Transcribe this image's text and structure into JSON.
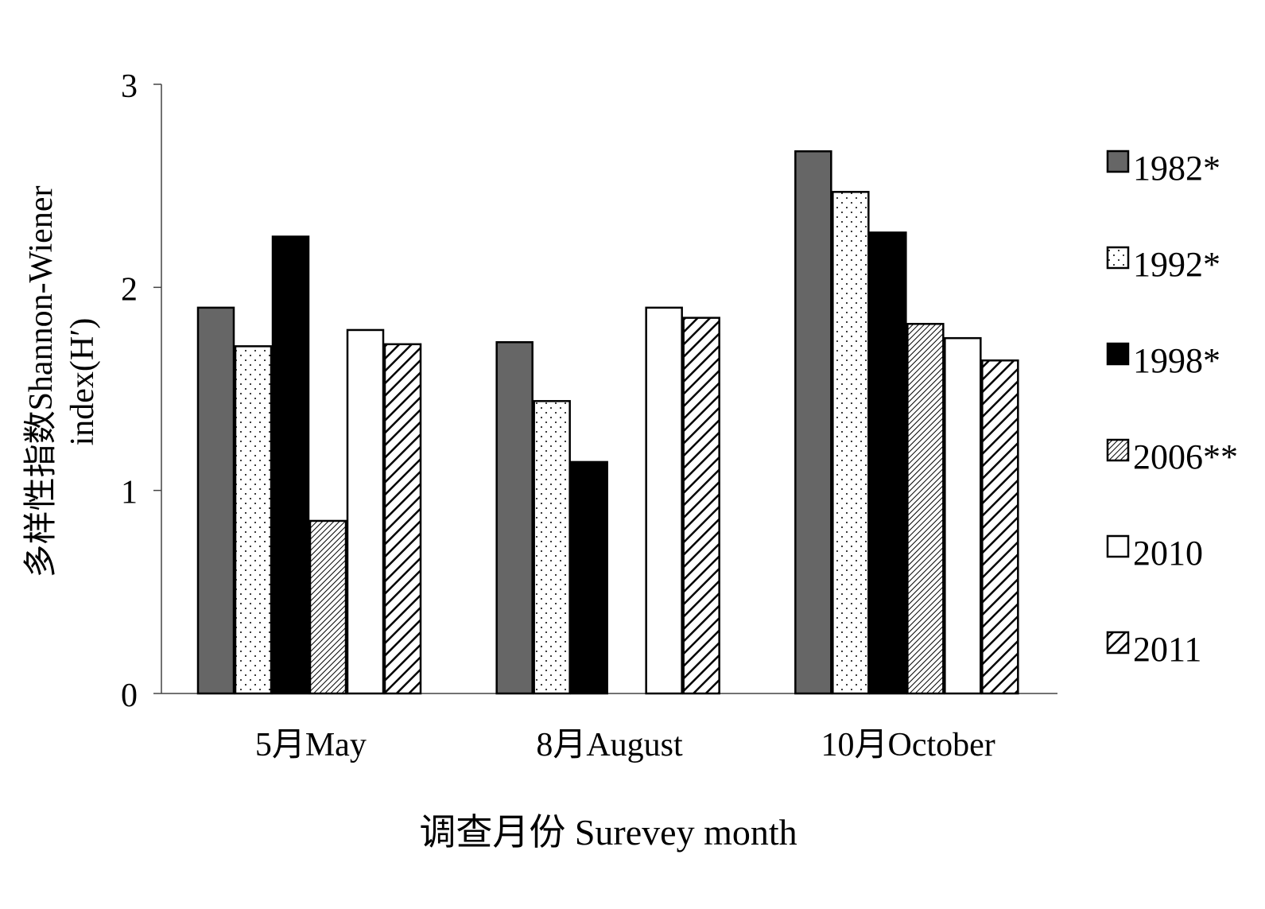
{
  "chart_data": {
    "type": "bar",
    "xlabel": "调查月份  Surevey month",
    "ylabel_line1": "多样性指数Shannon-Wiener",
    "ylabel_line2": "index(H′)",
    "ylim": [
      0,
      3
    ],
    "yticks": [
      "0",
      "1",
      "2",
      "3"
    ],
    "grid": false,
    "legend_position": "right",
    "categories": [
      "5月May",
      "8月August",
      "10月October"
    ],
    "series": [
      {
        "name": "1982*",
        "values": [
          1.9,
          1.73,
          2.67
        ],
        "pattern": "darkgray"
      },
      {
        "name": "1992*",
        "values": [
          1.71,
          1.44,
          2.47
        ],
        "pattern": "dots"
      },
      {
        "name": "1998*",
        "values": [
          2.25,
          1.14,
          2.27
        ],
        "pattern": "black"
      },
      {
        "name": "2006**",
        "values": [
          0.85,
          null,
          1.82
        ],
        "pattern": "finehatch"
      },
      {
        "name": "2010",
        "values": [
          1.79,
          1.9,
          1.75
        ],
        "pattern": "white"
      },
      {
        "name": "2011",
        "values": [
          1.72,
          1.85,
          1.64
        ],
        "pattern": "hatch"
      }
    ],
    "colors": {
      "darkgray": "#666666",
      "black": "#000000",
      "white": "#ffffff",
      "axis": "#444444"
    }
  }
}
